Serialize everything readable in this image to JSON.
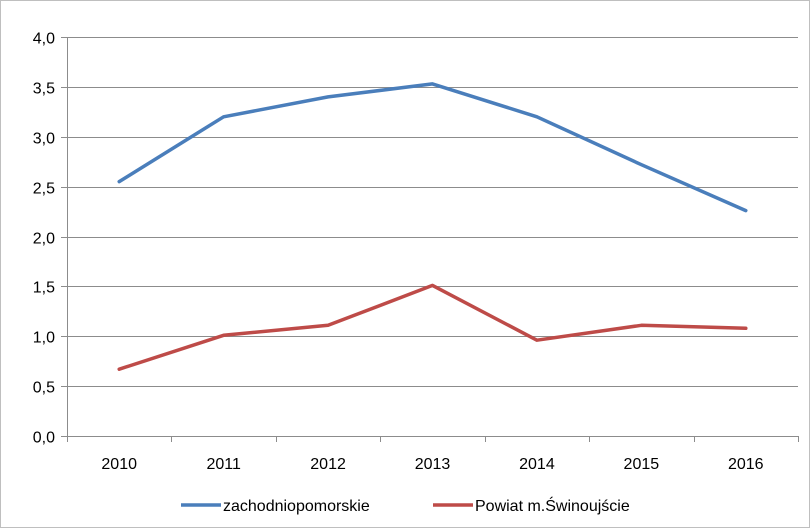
{
  "chart_data": {
    "type": "line",
    "categories": [
      "2010",
      "2011",
      "2012",
      "2013",
      "2014",
      "2015",
      "2016"
    ],
    "series": [
      {
        "name": "zachodniopomorskie",
        "color": "#4a7ebb",
        "values": [
          2.55,
          3.2,
          3.4,
          3.53,
          3.2,
          2.72,
          2.26
        ]
      },
      {
        "name": "Powiat m.Świnoujście",
        "color": "#be4b48",
        "values": [
          0.67,
          1.01,
          1.11,
          1.51,
          0.96,
          1.11,
          1.08
        ]
      }
    ],
    "yticks": [
      "0,0",
      "0,5",
      "1,0",
      "1,5",
      "2,0",
      "2,5",
      "3,0",
      "3,5",
      "4,0"
    ],
    "ylim": [
      0,
      4
    ],
    "ystep": 0.5,
    "grid": true,
    "legend": "bottom",
    "gridColor": "#8c8c8c",
    "axisColor": "#8c8c8c"
  }
}
